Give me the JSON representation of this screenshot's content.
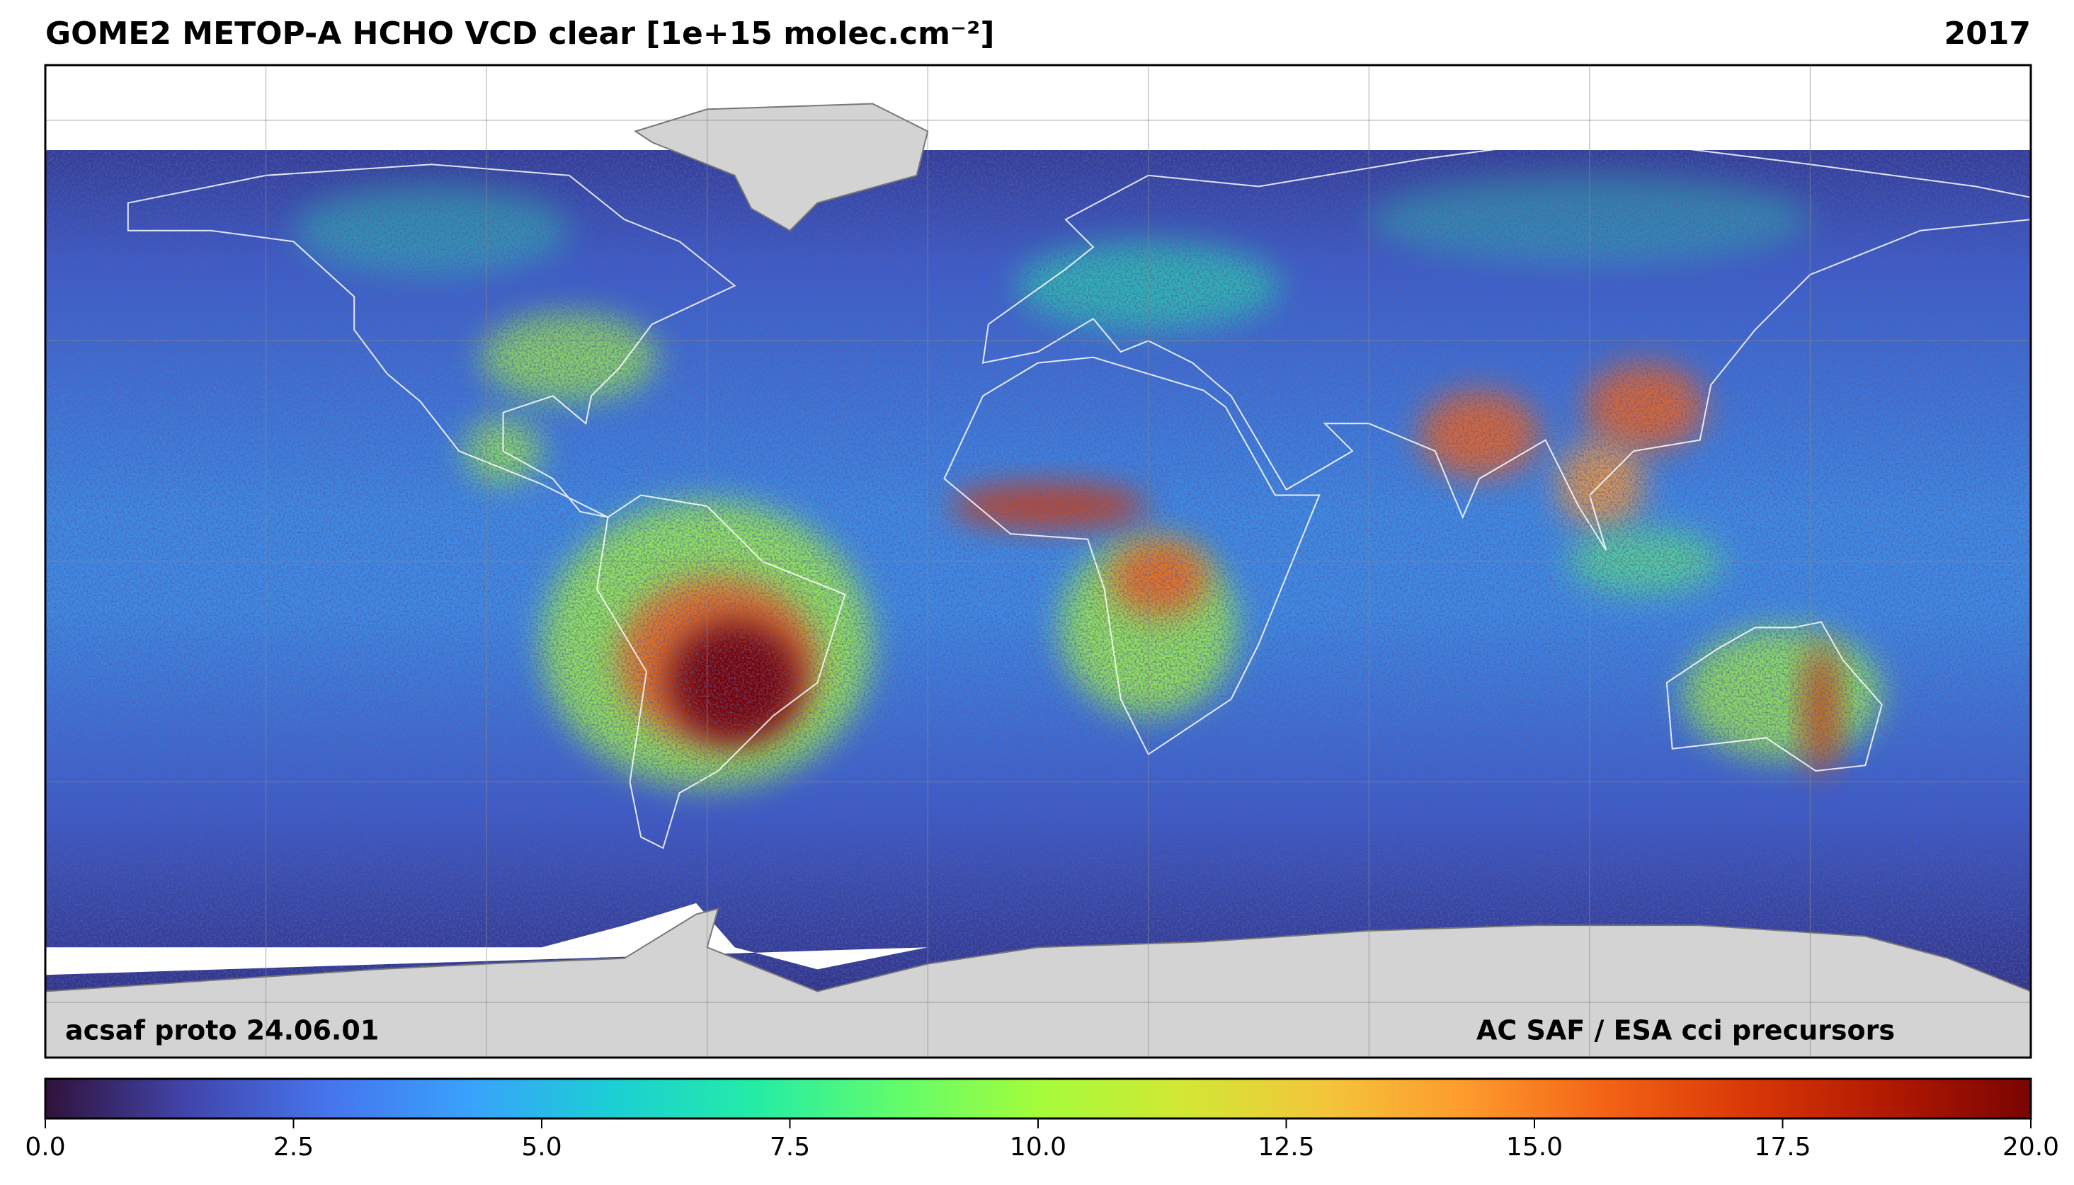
{
  "chart_data": {
    "type": "map",
    "title": "GOME2 METOP-A HCHO VCD clear [1e+15 molec.cm⁻²]",
    "year": "2017",
    "annotations": [
      "acsaf proto 24.06.01",
      "AC SAF / ESA cci precursors"
    ],
    "colorbar": {
      "lim": [
        0,
        20
      ],
      "ticks": [
        {
          "value": 0,
          "label": "0.0"
        },
        2.5,
        {
          "value": 5,
          "label": "5.0"
        },
        7.5,
        {
          "value": 10,
          "label": "10.0"
        },
        12.5,
        {
          "value": 15,
          "label": "15.0"
        },
        17.5,
        {
          "value": 20,
          "label": "20.0"
        }
      ],
      "colors": [
        "#30123b",
        "#4145ab",
        "#4675ed",
        "#39a2fc",
        "#1bcfd4",
        "#24eca6",
        "#61fc6c",
        "#a4fc3b",
        "#d1e834",
        "#f3c63a",
        "#fe9b2d",
        "#f36315",
        "#d93806",
        "#b11901",
        "#7a0402"
      ]
    }
  }
}
